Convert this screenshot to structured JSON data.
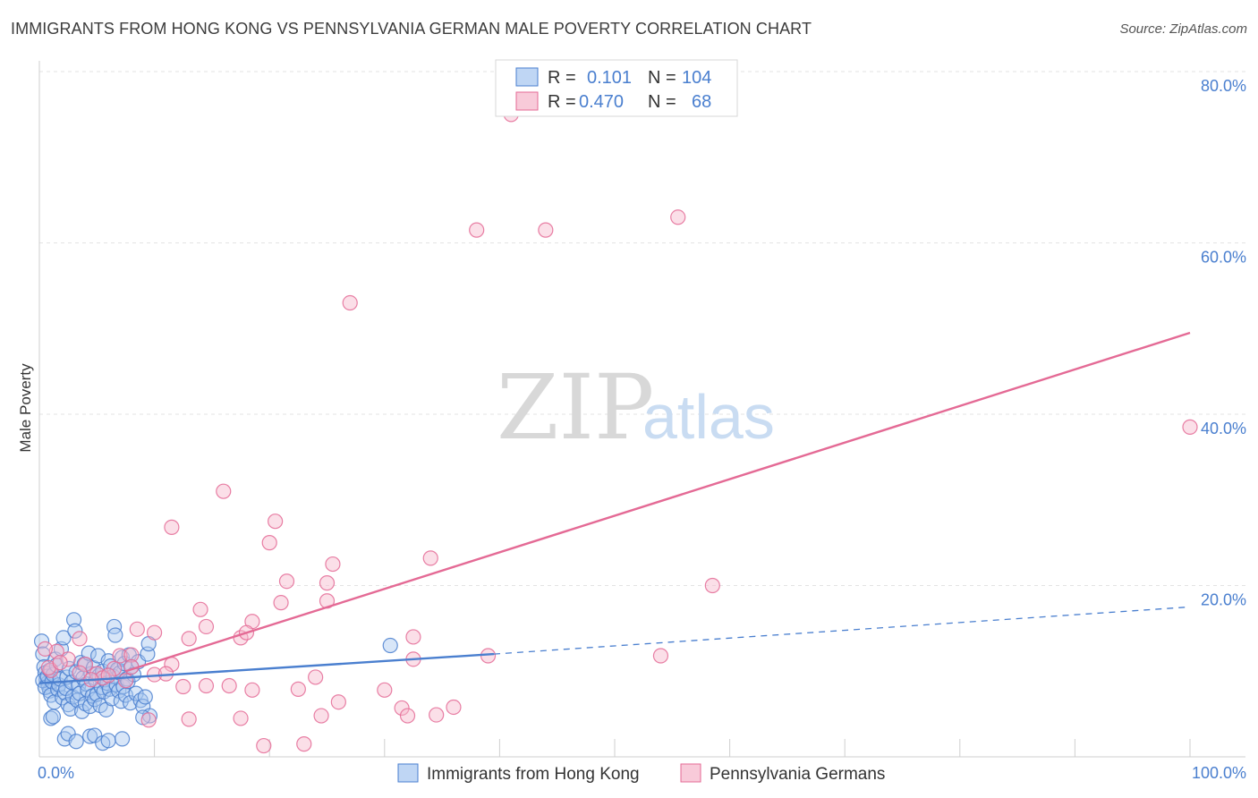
{
  "title": "IMMIGRANTS FROM HONG KONG VS PENNSYLVANIA GERMAN MALE POVERTY CORRELATION CHART",
  "source": "Source: ZipAtlas.com",
  "watermark": {
    "zip": "ZIP",
    "atlas": "atlas"
  },
  "colors": {
    "blue": "#4a7fcf",
    "blue_fill": "#a9c8f0",
    "pink": "#e46a95",
    "pink_fill": "#f6b8cc",
    "grid": "#e3e3e3",
    "axis_text": "#4a7fcf"
  },
  "legend": {
    "rows": [
      {
        "r_label": "R =",
        "r_value": "0.101",
        "n_label": "N =",
        "n_value": "104"
      },
      {
        "r_label": "R =",
        "r_value": "0.470",
        "n_label": "N =",
        "n_value": "68"
      }
    ]
  },
  "chart_data": {
    "type": "scatter",
    "title": "IMMIGRANTS FROM HONG KONG VS PENNSYLVANIA GERMAN MALE POVERTY CORRELATION CHART",
    "xlabel": "",
    "ylabel": "Male Poverty",
    "xlim": [
      0,
      100
    ],
    "ylim": [
      0,
      80
    ],
    "x_ticks": [
      0,
      10,
      20,
      30,
      40,
      50,
      60,
      70,
      80,
      90,
      100
    ],
    "x_tick_labels": {
      "0": "0.0%",
      "100": "100.0%"
    },
    "y_ticks": [
      20,
      40,
      60,
      80
    ],
    "y_tick_labels": [
      "20.0%",
      "40.0%",
      "60.0%",
      "80.0%"
    ],
    "grid": true,
    "legend_position": "top-center",
    "series": [
      {
        "name": "Immigrants from Hong Kong",
        "color": "blue",
        "R": 0.101,
        "N": 104,
        "trend_solid": [
          [
            0,
            8.6
          ],
          [
            39.5,
            12.0
          ]
        ],
        "trend_dashed": [
          [
            39.5,
            12.0
          ],
          [
            100,
            17.5
          ]
        ],
        "points": [
          [
            0.2,
            13.5
          ],
          [
            0.3,
            12.0
          ],
          [
            0.4,
            10.5
          ],
          [
            0.5,
            9.8
          ],
          [
            0.6,
            9.0
          ],
          [
            0.7,
            8.6
          ],
          [
            0.8,
            8.2
          ],
          [
            0.9,
            7.7
          ],
          [
            0.3,
            8.9
          ],
          [
            0.5,
            8.1
          ],
          [
            0.7,
            9.4
          ],
          [
            0.9,
            10.1
          ],
          [
            1.0,
            7.2
          ],
          [
            1.1,
            8.8
          ],
          [
            1.2,
            9.6
          ],
          [
            1.3,
            6.4
          ],
          [
            1.4,
            11.4
          ],
          [
            1.5,
            10.7
          ],
          [
            1.6,
            7.9
          ],
          [
            1.7,
            8.4
          ],
          [
            1.8,
            9.1
          ],
          [
            1.9,
            12.6
          ],
          [
            2.0,
            6.9
          ],
          [
            2.1,
            13.9
          ],
          [
            2.2,
            7.5
          ],
          [
            2.3,
            8.0
          ],
          [
            2.4,
            9.3
          ],
          [
            2.5,
            6.1
          ],
          [
            2.6,
            10.3
          ],
          [
            2.7,
            5.6
          ],
          [
            2.8,
            8.7
          ],
          [
            2.9,
            7.0
          ],
          [
            3.0,
            16.0
          ],
          [
            3.1,
            14.7
          ],
          [
            3.2,
            9.9
          ],
          [
            3.3,
            6.6
          ],
          [
            3.4,
            8.3
          ],
          [
            3.5,
            7.4
          ],
          [
            3.6,
            11.0
          ],
          [
            3.7,
            5.3
          ],
          [
            3.8,
            9.2
          ],
          [
            3.9,
            10.8
          ],
          [
            4.0,
            6.2
          ],
          [
            4.1,
            8.5
          ],
          [
            4.2,
            7.8
          ],
          [
            4.3,
            12.1
          ],
          [
            4.4,
            5.9
          ],
          [
            4.5,
            9.7
          ],
          [
            4.6,
            7.1
          ],
          [
            4.7,
            10.4
          ],
          [
            4.8,
            6.7
          ],
          [
            4.9,
            8.9
          ],
          [
            5.0,
            7.3
          ],
          [
            5.1,
            11.8
          ],
          [
            5.2,
            9.5
          ],
          [
            5.3,
            6.0
          ],
          [
            5.4,
            8.1
          ],
          [
            5.5,
            10.0
          ],
          [
            5.6,
            7.6
          ],
          [
            5.7,
            9.0
          ],
          [
            5.8,
            5.5
          ],
          [
            5.9,
            8.6
          ],
          [
            6.0,
            11.2
          ],
          [
            6.1,
            7.9
          ],
          [
            6.2,
            10.6
          ],
          [
            6.3,
            6.8
          ],
          [
            6.4,
            9.4
          ],
          [
            6.5,
            15.2
          ],
          [
            6.6,
            14.2
          ],
          [
            6.7,
            8.4
          ],
          [
            6.8,
            10.2
          ],
          [
            6.9,
            7.7
          ],
          [
            7.0,
            9.8
          ],
          [
            7.1,
            6.5
          ],
          [
            7.2,
            11.6
          ],
          [
            7.3,
            8.2
          ],
          [
            7.4,
            10.9
          ],
          [
            7.5,
            7.2
          ],
          [
            7.6,
            9.1
          ],
          [
            7.7,
            8.8
          ],
          [
            7.8,
            11.9
          ],
          [
            7.9,
            6.3
          ],
          [
            8.0,
            10.5
          ],
          [
            8.2,
            9.6
          ],
          [
            8.4,
            7.4
          ],
          [
            8.6,
            11.1
          ],
          [
            8.8,
            6.6
          ],
          [
            9.0,
            5.9
          ],
          [
            9.2,
            7.0
          ],
          [
            9.4,
            12.0
          ],
          [
            9.6,
            4.8
          ],
          [
            9.0,
            4.6
          ],
          [
            1.0,
            4.5
          ],
          [
            1.2,
            4.7
          ],
          [
            2.2,
            2.1
          ],
          [
            2.5,
            2.7
          ],
          [
            3.2,
            1.8
          ],
          [
            4.4,
            2.4
          ],
          [
            4.8,
            2.5
          ],
          [
            5.5,
            1.6
          ],
          [
            6.0,
            1.9
          ],
          [
            7.2,
            2.1
          ],
          [
            9.5,
            13.2
          ],
          [
            30.5,
            13.0
          ]
        ]
      },
      {
        "name": "Pennsylvania Germans",
        "color": "pink",
        "R": 0.47,
        "N": 68,
        "trend_solid": [
          [
            7.5,
            10.0
          ],
          [
            100,
            49.5
          ]
        ],
        "points": [
          [
            41.0,
            75.0
          ],
          [
            38.0,
            61.5
          ],
          [
            44.0,
            61.5
          ],
          [
            55.5,
            63.0
          ],
          [
            27.0,
            53.0
          ],
          [
            100,
            38.5
          ],
          [
            16.0,
            31.0
          ],
          [
            11.5,
            26.8
          ],
          [
            20.5,
            27.5
          ],
          [
            20.0,
            25.0
          ],
          [
            34.0,
            23.2
          ],
          [
            25.5,
            22.5
          ],
          [
            21.5,
            20.5
          ],
          [
            25.0,
            20.3
          ],
          [
            58.5,
            20.0
          ],
          [
            21.0,
            18.0
          ],
          [
            25.0,
            18.2
          ],
          [
            14.0,
            17.2
          ],
          [
            18.5,
            15.8
          ],
          [
            14.5,
            15.2
          ],
          [
            8.5,
            14.9
          ],
          [
            10.0,
            14.5
          ],
          [
            13.0,
            13.8
          ],
          [
            17.5,
            13.9
          ],
          [
            18.0,
            14.5
          ],
          [
            32.5,
            14.0
          ],
          [
            3.5,
            13.8
          ],
          [
            1.5,
            12.3
          ],
          [
            7.0,
            11.8
          ],
          [
            8.0,
            11.9
          ],
          [
            39.0,
            11.8
          ],
          [
            54.0,
            11.8
          ],
          [
            2.5,
            11.4
          ],
          [
            32.5,
            11.4
          ],
          [
            4.0,
            10.8
          ],
          [
            11.5,
            10.8
          ],
          [
            8.0,
            10.5
          ],
          [
            6.5,
            10.3
          ],
          [
            1.0,
            10.1
          ],
          [
            3.5,
            9.8
          ],
          [
            5.0,
            9.7
          ],
          [
            10.0,
            9.6
          ],
          [
            11.0,
            9.7
          ],
          [
            24.0,
            9.3
          ],
          [
            5.5,
            9.2
          ],
          [
            7.5,
            8.9
          ],
          [
            12.5,
            8.2
          ],
          [
            14.5,
            8.3
          ],
          [
            16.5,
            8.3
          ],
          [
            18.5,
            7.8
          ],
          [
            22.5,
            7.9
          ],
          [
            30.0,
            7.8
          ],
          [
            26.0,
            6.4
          ],
          [
            31.5,
            5.7
          ],
          [
            32.0,
            4.8
          ],
          [
            34.5,
            4.9
          ],
          [
            36.0,
            5.8
          ],
          [
            17.5,
            4.5
          ],
          [
            24.5,
            4.8
          ],
          [
            9.5,
            4.3
          ],
          [
            13.0,
            4.4
          ],
          [
            19.5,
            1.3
          ],
          [
            23.0,
            1.5
          ],
          [
            0.5,
            12.6
          ],
          [
            0.8,
            10.4
          ],
          [
            1.8,
            11.0
          ],
          [
            4.5,
            9.0
          ],
          [
            6.0,
            9.5
          ]
        ]
      }
    ],
    "bottom_legend": [
      "Immigrants from Hong Kong",
      "Pennsylvania Germans"
    ]
  }
}
